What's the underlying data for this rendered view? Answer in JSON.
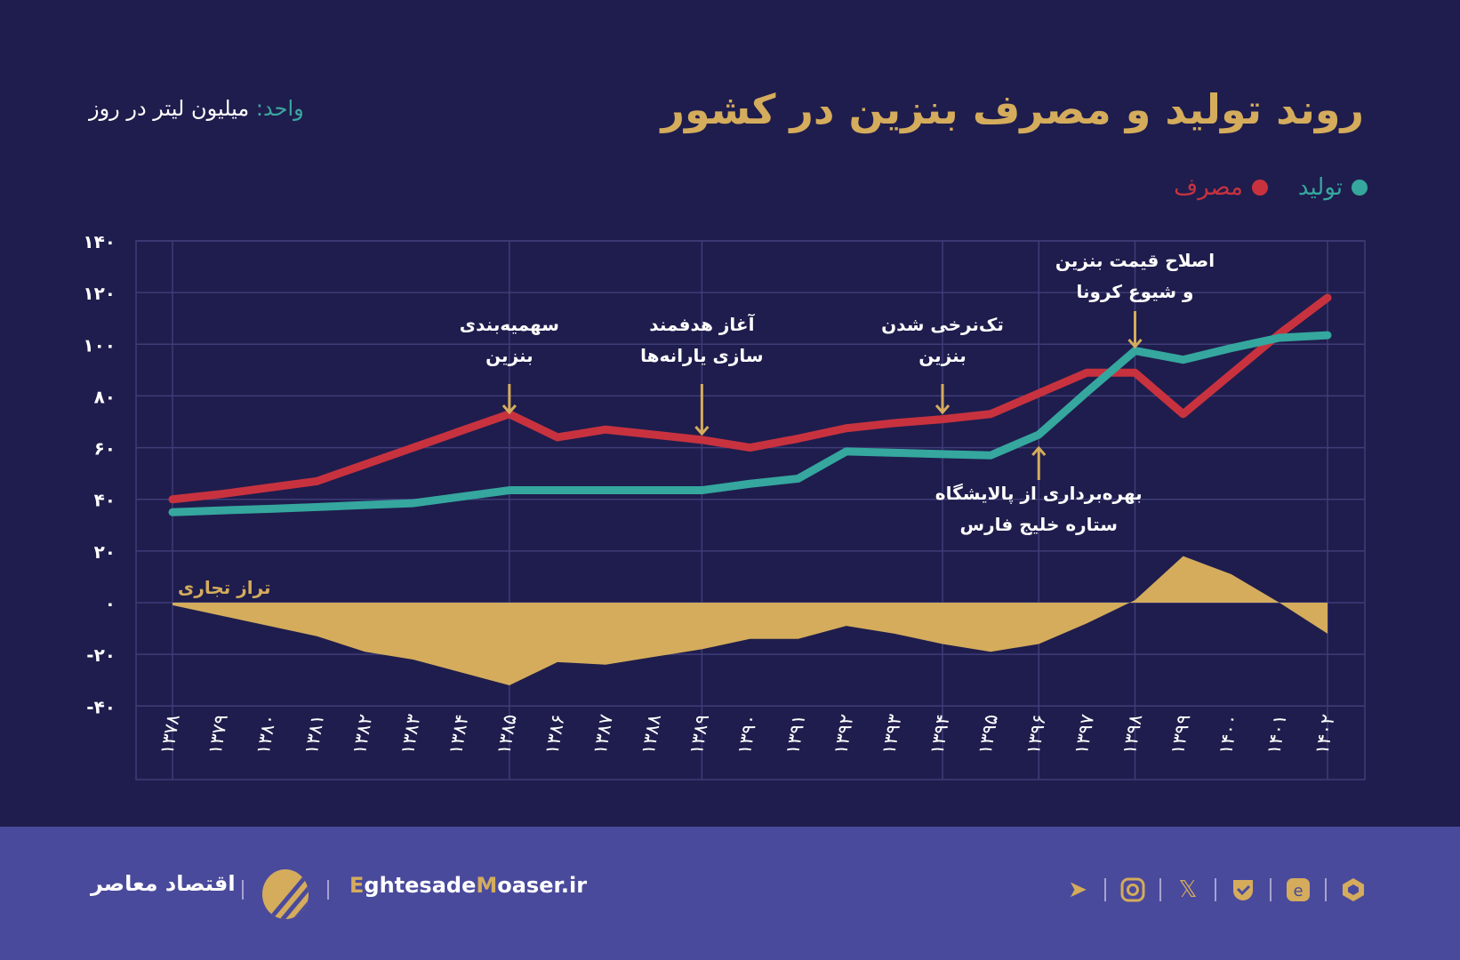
{
  "title": "روند تولید و مصرف بنزین در کشور",
  "unit": {
    "label": "واحد:",
    "value": "میلیون لیتر در روز"
  },
  "legend": [
    {
      "name": "تولید",
      "color": "#35a79e"
    },
    {
      "name": "مصرف",
      "color": "#c8323f"
    }
  ],
  "chart_data": {
    "type": "line",
    "title": "روند تولید و مصرف بنزین در کشور",
    "ylabel": "",
    "xlabel": "",
    "ylim": [
      -40,
      140
    ],
    "yticks": [
      140,
      120,
      100,
      80,
      60,
      40,
      20,
      0,
      -20,
      -40
    ],
    "ytick_labels": [
      "۱۴۰",
      "۱۲۰",
      "۱۰۰",
      "۸۰",
      "۶۰",
      "۴۰",
      "۲۰",
      "۰",
      "-۲۰",
      "-۴۰"
    ],
    "grid": true,
    "legend_position": "top-right",
    "categories": [
      "۱۳۷۸",
      "۱۳۷۹",
      "۱۳۸۰",
      "۱۳۸۱",
      "۱۳۸۲",
      "۱۳۸۳",
      "۱۳۸۴",
      "۱۳۸۵",
      "۱۳۸۶",
      "۱۳۸۷",
      "۱۳۸۸",
      "۱۳۸۹",
      "۱۳۹۰",
      "۱۳۹۱",
      "۱۳۹۲",
      "۱۳۹۳",
      "۱۳۹۴",
      "۱۳۹۵",
      "۱۳۹۶",
      "۱۳۹۷",
      "۱۳۹۸",
      "۱۳۹۹",
      "۱۴۰۰",
      "۱۴۰۱",
      "۱۴۰۲"
    ],
    "series": [
      {
        "name": "مصرف",
        "color": "#c8323f",
        "values": [
          40,
          42,
          44.5,
          47,
          53.5,
          60,
          66.5,
          73,
          64,
          67,
          65,
          63,
          60,
          63.5,
          67.5,
          69.5,
          71,
          73,
          81,
          89,
          89,
          73,
          88.5,
          104,
          118
        ]
      },
      {
        "name": "تولید",
        "color": "#35a79e",
        "values": [
          35,
          35.7,
          36.3,
          37,
          37.8,
          38.5,
          41,
          43.5,
          43.5,
          43.5,
          43.5,
          43.5,
          46,
          48,
          58.5,
          58,
          57.5,
          57,
          65,
          81.5,
          97.5,
          94,
          98.5,
          102.5,
          103.5
        ]
      },
      {
        "name": "تراز تجاری",
        "color": "#d4ac5c",
        "type": "area",
        "values": [
          -1,
          -5,
          -9,
          -13,
          -19,
          -22,
          -27,
          -32,
          -23,
          -24,
          -21,
          -18,
          -14,
          -14,
          -9,
          -12,
          -16,
          -19,
          -16,
          -8,
          1,
          18,
          11,
          0,
          -12
        ]
      }
    ],
    "annotations": [
      {
        "text": [
          "سهمیه‌بندی",
          "بنزین"
        ],
        "year": "۱۳۸۵",
        "direction": "down"
      },
      {
        "text": [
          "آغاز هدفمند",
          "سازی یارانه‌ها"
        ],
        "year": "۱۳۸۹",
        "direction": "down"
      },
      {
        "text": [
          "تک‌نرخی شدن",
          "بنزین"
        ],
        "year": "۱۳۹۴",
        "direction": "down"
      },
      {
        "text": [
          "اصلاح قیمت بنزین",
          "و شیوع کرونا"
        ],
        "year": "۱۳۹۸",
        "direction": "down"
      },
      {
        "text": [
          "بهره‌برداری از پالایشگاه",
          "ستاره خلیج فارس"
        ],
        "year": "۱۳۹۶",
        "direction": "up"
      }
    ]
  },
  "footer": {
    "brand": "اقتصاد معاصر",
    "site_prefix_1": "E",
    "site_mid": "ghtesade",
    "site_prefix_2": "M",
    "site_end": "oaser.ir",
    "socials": [
      "telegram-icon",
      "instagram-icon",
      "x-icon",
      "bale-icon",
      "eitaa-icon",
      "rubika-icon"
    ]
  }
}
